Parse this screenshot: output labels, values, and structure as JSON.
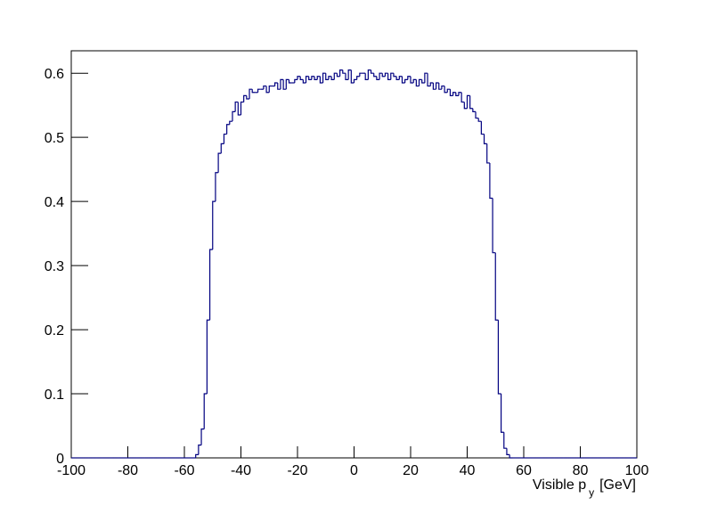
{
  "chart_data": {
    "type": "histogram",
    "x_label": {
      "text": "Visible p",
      "subscript": "y",
      "unit": "[GeV]"
    },
    "color": "#000080",
    "xlim": [
      -100,
      100
    ],
    "ylim": [
      0,
      0.635
    ],
    "xticks": [
      -100,
      -80,
      -60,
      -40,
      -20,
      0,
      20,
      40,
      60,
      80,
      100
    ],
    "yticks": [
      0,
      0.1,
      0.2,
      0.3,
      0.4,
      0.5,
      0.6
    ],
    "grid": false,
    "bins": [
      -100,
      -99,
      -98,
      -97,
      -96,
      -95,
      -94,
      -93,
      -92,
      -91,
      -90,
      -89,
      -88,
      -87,
      -86,
      -85,
      -84,
      -83,
      -82,
      -81,
      -80,
      -79,
      -78,
      -77,
      -76,
      -75,
      -74,
      -73,
      -72,
      -71,
      -70,
      -69,
      -68,
      -67,
      -66,
      -65,
      -64,
      -63,
      -62,
      -61,
      -60,
      -59,
      -58,
      -57,
      -56,
      -55,
      -54,
      -53,
      -52,
      -51,
      -50,
      -49,
      -48,
      -47,
      -46,
      -45,
      -44,
      -43,
      -42,
      -41,
      -40,
      -39,
      -38,
      -37,
      -36,
      -35,
      -34,
      -33,
      -32,
      -31,
      -30,
      -29,
      -28,
      -27,
      -26,
      -25,
      -24,
      -23,
      -22,
      -21,
      -20,
      -19,
      -18,
      -17,
      -16,
      -15,
      -14,
      -13,
      -12,
      -11,
      -10,
      -9,
      -8,
      -7,
      -6,
      -5,
      -4,
      -3,
      -2,
      -1,
      0,
      1,
      2,
      3,
      4,
      5,
      6,
      7,
      8,
      9,
      10,
      11,
      12,
      13,
      14,
      15,
      16,
      17,
      18,
      19,
      20,
      21,
      22,
      23,
      24,
      25,
      26,
      27,
      28,
      29,
      30,
      31,
      32,
      33,
      34,
      35,
      36,
      37,
      38,
      39,
      40,
      41,
      42,
      43,
      44,
      45,
      46,
      47,
      48,
      49,
      50,
      51,
      52,
      53,
      54,
      55,
      56,
      57,
      58,
      59,
      60,
      61,
      62,
      63,
      64,
      65,
      66,
      67,
      68,
      69,
      70,
      71,
      72,
      73,
      74,
      75,
      76,
      77,
      78,
      79,
      80,
      81,
      82,
      83,
      84,
      85,
      86,
      87,
      88,
      89,
      90,
      91,
      92,
      93,
      94,
      95,
      96,
      97,
      98,
      99,
      100
    ],
    "counts": [
      0,
      0,
      0,
      0,
      0,
      0,
      0,
      0,
      0,
      0,
      0,
      0,
      0,
      0,
      0,
      0,
      0,
      0,
      0,
      0,
      0,
      0,
      0,
      0,
      0,
      0,
      0,
      0,
      0,
      0,
      0,
      0,
      0,
      0,
      0,
      0,
      0,
      0,
      0,
      0,
      0,
      0,
      0,
      0,
      0.005,
      0.02,
      0.045,
      0.1,
      0.215,
      0.325,
      0.4,
      0.445,
      0.475,
      0.49,
      0.505,
      0.52,
      0.525,
      0.54,
      0.555,
      0.535,
      0.555,
      0.565,
      0.56,
      0.575,
      0.57,
      0.57,
      0.575,
      0.575,
      0.58,
      0.57,
      0.58,
      0.58,
      0.585,
      0.575,
      0.59,
      0.575,
      0.59,
      0.585,
      0.585,
      0.59,
      0.595,
      0.59,
      0.585,
      0.595,
      0.59,
      0.595,
      0.59,
      0.595,
      0.585,
      0.6,
      0.59,
      0.595,
      0.59,
      0.6,
      0.595,
      0.605,
      0.6,
      0.59,
      0.605,
      0.585,
      0.59,
      0.595,
      0.6,
      0.6,
      0.59,
      0.605,
      0.6,
      0.595,
      0.59,
      0.6,
      0.595,
      0.6,
      0.59,
      0.6,
      0.595,
      0.59,
      0.595,
      0.585,
      0.59,
      0.595,
      0.585,
      0.59,
      0.58,
      0.59,
      0.585,
      0.6,
      0.58,
      0.585,
      0.575,
      0.585,
      0.575,
      0.58,
      0.57,
      0.575,
      0.565,
      0.57,
      0.565,
      0.57,
      0.555,
      0.545,
      0.565,
      0.545,
      0.54,
      0.53,
      0.525,
      0.505,
      0.49,
      0.46,
      0.405,
      0.32,
      0.215,
      0.1,
      0.04,
      0.015,
      0.005,
      0,
      0,
      0,
      0,
      0,
      0,
      0,
      0,
      0,
      0,
      0,
      0,
      0,
      0,
      0,
      0,
      0,
      0,
      0,
      0,
      0,
      0,
      0,
      0,
      0,
      0,
      0,
      0,
      0,
      0,
      0,
      0,
      0,
      0,
      0,
      0,
      0,
      0,
      0,
      0,
      0,
      0,
      0,
      0,
      0
    ]
  }
}
